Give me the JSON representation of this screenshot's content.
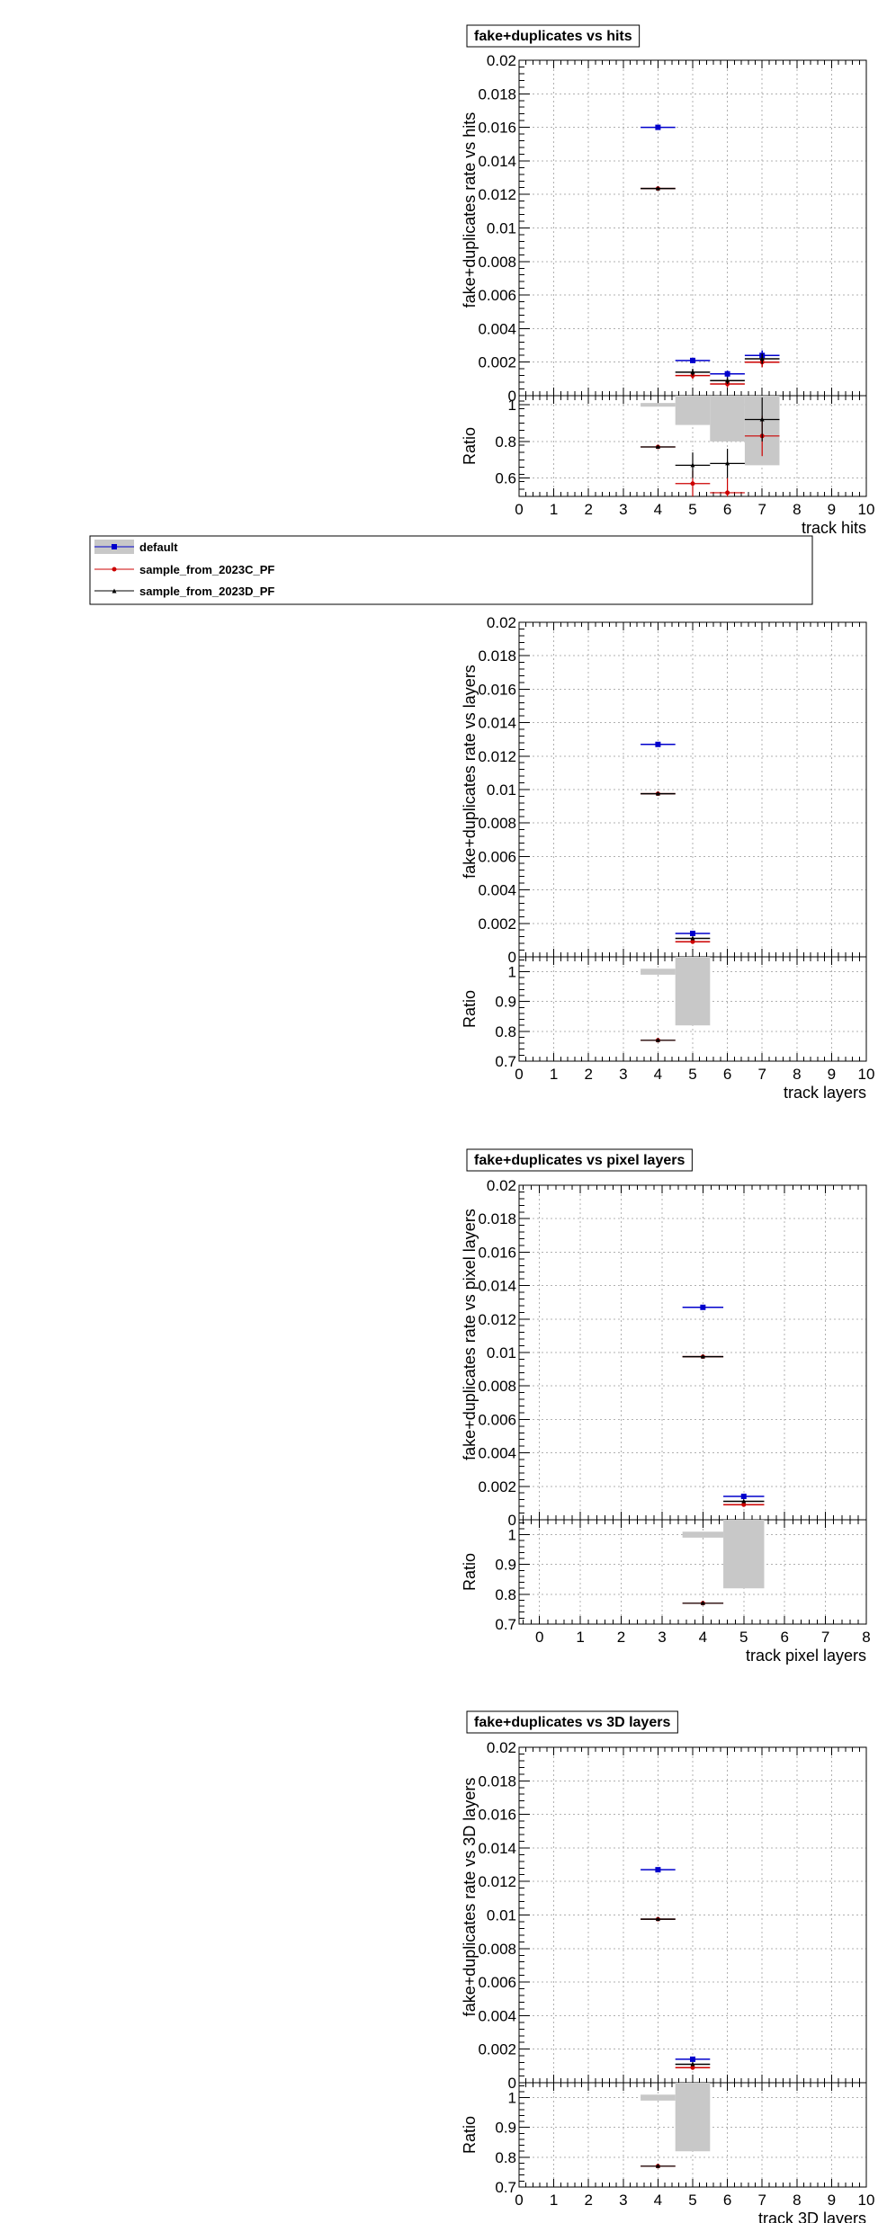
{
  "legend": {
    "entries": [
      {
        "label": "default",
        "color": "#0000cc",
        "marker": "square"
      },
      {
        "label": "sample_from_2023C_PF",
        "color": "#cc0000",
        "marker": "circle"
      },
      {
        "label": "sample_from_2023D_PF",
        "color": "#000000",
        "marker": "triangle"
      }
    ]
  },
  "chart_data": [
    {
      "type": "scatter",
      "title": "fake+duplicates vs hits",
      "xlabel": "track hits",
      "ylabel": "fake+duplicates rate vs hits",
      "ratio_ylabel": "Ratio",
      "xlim": [
        0,
        10
      ],
      "ylim": [
        0,
        0.02
      ],
      "ratio_ylim": [
        0.5,
        1.05
      ],
      "x_ticks": [
        0,
        1,
        2,
        3,
        4,
        5,
        6,
        7,
        8,
        9,
        10
      ],
      "y_ticks": [
        0,
        0.002,
        0.004,
        0.006,
        0.008,
        0.01,
        0.012,
        0.014,
        0.016,
        0.018,
        0.02
      ],
      "y_tick_labels": [
        "0",
        "0.002",
        "0.004",
        "0.006",
        "0.008",
        "0.01",
        "0.012",
        "0.014",
        "0.016",
        "0.018",
        "0.02"
      ],
      "ratio_ticks": [
        0.6,
        0.8,
        1
      ],
      "ratio_tick_labels": [
        "0.6",
        "0.8",
        "1"
      ],
      "grid": true,
      "bin_half_width": 0.5,
      "series": [
        {
          "name": "default",
          "x": [
            4,
            5,
            6,
            7
          ],
          "y": [
            0.016,
            0.0021,
            0.0013,
            0.0024
          ],
          "yerr": [
            5e-05,
            0.00015,
            0.0002,
            0.0003
          ]
        },
        {
          "name": "sample_from_2023C_PF",
          "x": [
            4,
            5,
            6,
            7
          ],
          "y": [
            0.01235,
            0.0012,
            0.0007,
            0.002
          ],
          "yerr": [
            5e-05,
            0.0002,
            0.0002,
            0.0003
          ]
        },
        {
          "name": "sample_from_2023D_PF",
          "x": [
            4,
            5,
            6,
            7
          ],
          "y": [
            0.01235,
            0.0014,
            0.0009,
            0.0022
          ],
          "yerr": [
            5e-05,
            0.0002,
            0.0002,
            0.0003
          ]
        }
      ],
      "ratio_band": [
        {
          "x": 4,
          "lo": 0.99,
          "hi": 1.01
        },
        {
          "x": 5,
          "lo": 0.89,
          "hi": 1.05
        },
        {
          "x": 6,
          "lo": 0.8,
          "hi": 1.05
        },
        {
          "x": 7,
          "lo": 0.67,
          "hi": 1.05
        }
      ],
      "ratio_series": [
        {
          "name": "sample_from_2023C_PF",
          "x": [
            4,
            5,
            6,
            7
          ],
          "y": [
            0.77,
            0.57,
            0.52,
            0.83
          ],
          "yerr": [
            0.005,
            0.07,
            0.08,
            0.11
          ]
        },
        {
          "name": "sample_from_2023D_PF",
          "x": [
            4,
            5,
            6,
            7
          ],
          "y": [
            0.77,
            0.67,
            0.68,
            0.92
          ],
          "yerr": [
            0.005,
            0.07,
            0.08,
            0.12
          ]
        }
      ]
    },
    {
      "type": "scatter",
      "title": "",
      "xlabel": "track layers",
      "ylabel": "fake+duplicates rate vs layers",
      "ratio_ylabel": "Ratio",
      "xlim": [
        0,
        10
      ],
      "ylim": [
        0,
        0.02
      ],
      "ratio_ylim": [
        0.7,
        1.05
      ],
      "x_ticks": [
        0,
        1,
        2,
        3,
        4,
        5,
        6,
        7,
        8,
        9,
        10
      ],
      "y_ticks": [
        0,
        0.002,
        0.004,
        0.006,
        0.008,
        0.01,
        0.012,
        0.014,
        0.016,
        0.018,
        0.02
      ],
      "y_tick_labels": [
        "0",
        "0.002",
        "0.004",
        "0.006",
        "0.008",
        "0.01",
        "0.012",
        "0.014",
        "0.016",
        "0.018",
        "0.02"
      ],
      "ratio_ticks": [
        0.7,
        0.8,
        0.9,
        1
      ],
      "ratio_tick_labels": [
        "0.7",
        "0.8",
        "0.9",
        "1"
      ],
      "grid": true,
      "bin_half_width": 0.5,
      "series": [
        {
          "name": "default",
          "x": [
            4,
            5
          ],
          "y": [
            0.0127,
            0.0014
          ],
          "yerr": [
            5e-05,
            0.00015
          ]
        },
        {
          "name": "sample_from_2023C_PF",
          "x": [
            4,
            5
          ],
          "y": [
            0.00975,
            0.0009
          ],
          "yerr": [
            5e-05,
            0.0001
          ]
        },
        {
          "name": "sample_from_2023D_PF",
          "x": [
            4,
            5
          ],
          "y": [
            0.00975,
            0.0011
          ],
          "yerr": [
            5e-05,
            0.0001
          ]
        }
      ],
      "ratio_band": [
        {
          "x": 4,
          "lo": 0.99,
          "hi": 1.01
        },
        {
          "x": 5,
          "lo": 0.82,
          "hi": 1.05
        }
      ],
      "ratio_series": [
        {
          "name": "sample_from_2023C_PF",
          "x": [
            4
          ],
          "y": [
            0.77
          ],
          "yerr": [
            0.005
          ]
        },
        {
          "name": "sample_from_2023D_PF",
          "x": [
            4
          ],
          "y": [
            0.77
          ],
          "yerr": [
            0.005
          ]
        }
      ]
    },
    {
      "type": "scatter",
      "title": "fake+duplicates vs pixel layers",
      "xlabel": "track pixel layers",
      "ylabel": "fake+duplicates rate vs pixel layers",
      "ratio_ylabel": "Ratio",
      "xlim": [
        -0.5,
        8
      ],
      "ylim": [
        0,
        0.02
      ],
      "ratio_ylim": [
        0.7,
        1.05
      ],
      "x_ticks": [
        0,
        1,
        2,
        3,
        4,
        5,
        6,
        7,
        8
      ],
      "y_ticks": [
        0,
        0.002,
        0.004,
        0.006,
        0.008,
        0.01,
        0.012,
        0.014,
        0.016,
        0.018,
        0.02
      ],
      "y_tick_labels": [
        "0",
        "0.002",
        "0.004",
        "0.006",
        "0.008",
        "0.01",
        "0.012",
        "0.014",
        "0.016",
        "0.018",
        "0.02"
      ],
      "ratio_ticks": [
        0.7,
        0.8,
        0.9,
        1
      ],
      "ratio_tick_labels": [
        "0.7",
        "0.8",
        "0.9",
        "1"
      ],
      "grid": true,
      "bin_half_width": 0.5,
      "series": [
        {
          "name": "default",
          "x": [
            4,
            5
          ],
          "y": [
            0.0127,
            0.0014
          ],
          "yerr": [
            5e-05,
            0.00015
          ]
        },
        {
          "name": "sample_from_2023C_PF",
          "x": [
            4,
            5
          ],
          "y": [
            0.00975,
            0.0009
          ],
          "yerr": [
            5e-05,
            0.0001
          ]
        },
        {
          "name": "sample_from_2023D_PF",
          "x": [
            4,
            5
          ],
          "y": [
            0.00975,
            0.0011
          ],
          "yerr": [
            5e-05,
            0.0001
          ]
        }
      ],
      "ratio_band": [
        {
          "x": 4,
          "lo": 0.99,
          "hi": 1.01
        },
        {
          "x": 5,
          "lo": 0.82,
          "hi": 1.05
        }
      ],
      "ratio_series": [
        {
          "name": "sample_from_2023C_PF",
          "x": [
            4
          ],
          "y": [
            0.77
          ],
          "yerr": [
            0.005
          ]
        },
        {
          "name": "sample_from_2023D_PF",
          "x": [
            4
          ],
          "y": [
            0.77
          ],
          "yerr": [
            0.005
          ]
        }
      ]
    },
    {
      "type": "scatter",
      "title": "fake+duplicates vs 3D layers",
      "xlabel": "track 3D layers",
      "ylabel": "fake+duplicates rate vs 3D layers",
      "ratio_ylabel": "Ratio",
      "xlim": [
        0,
        10
      ],
      "ylim": [
        0,
        0.02
      ],
      "ratio_ylim": [
        0.7,
        1.05
      ],
      "x_ticks": [
        0,
        1,
        2,
        3,
        4,
        5,
        6,
        7,
        8,
        9,
        10
      ],
      "y_ticks": [
        0,
        0.002,
        0.004,
        0.006,
        0.008,
        0.01,
        0.012,
        0.014,
        0.016,
        0.018,
        0.02
      ],
      "y_tick_labels": [
        "0",
        "0.002",
        "0.004",
        "0.006",
        "0.008",
        "0.01",
        "0.012",
        "0.014",
        "0.016",
        "0.018",
        "0.02"
      ],
      "ratio_ticks": [
        0.7,
        0.8,
        0.9,
        1
      ],
      "ratio_tick_labels": [
        "0.7",
        "0.8",
        "0.9",
        "1"
      ],
      "grid": true,
      "bin_half_width": 0.5,
      "series": [
        {
          "name": "default",
          "x": [
            4,
            5
          ],
          "y": [
            0.0127,
            0.0014
          ],
          "yerr": [
            5e-05,
            0.00015
          ]
        },
        {
          "name": "sample_from_2023C_PF",
          "x": [
            4,
            5
          ],
          "y": [
            0.00975,
            0.0009
          ],
          "yerr": [
            5e-05,
            0.0001
          ]
        },
        {
          "name": "sample_from_2023D_PF",
          "x": [
            4,
            5
          ],
          "y": [
            0.00975,
            0.0011
          ],
          "yerr": [
            5e-05,
            0.0001
          ]
        }
      ],
      "ratio_band": [
        {
          "x": 4,
          "lo": 0.99,
          "hi": 1.01
        },
        {
          "x": 5,
          "lo": 0.82,
          "hi": 1.05
        }
      ],
      "ratio_series": [
        {
          "name": "sample_from_2023C_PF",
          "x": [
            4
          ],
          "y": [
            0.77
          ],
          "yerr": [
            0.005
          ]
        },
        {
          "name": "sample_from_2023D_PF",
          "x": [
            4
          ],
          "y": [
            0.77
          ],
          "yerr": [
            0.005
          ]
        }
      ]
    }
  ]
}
